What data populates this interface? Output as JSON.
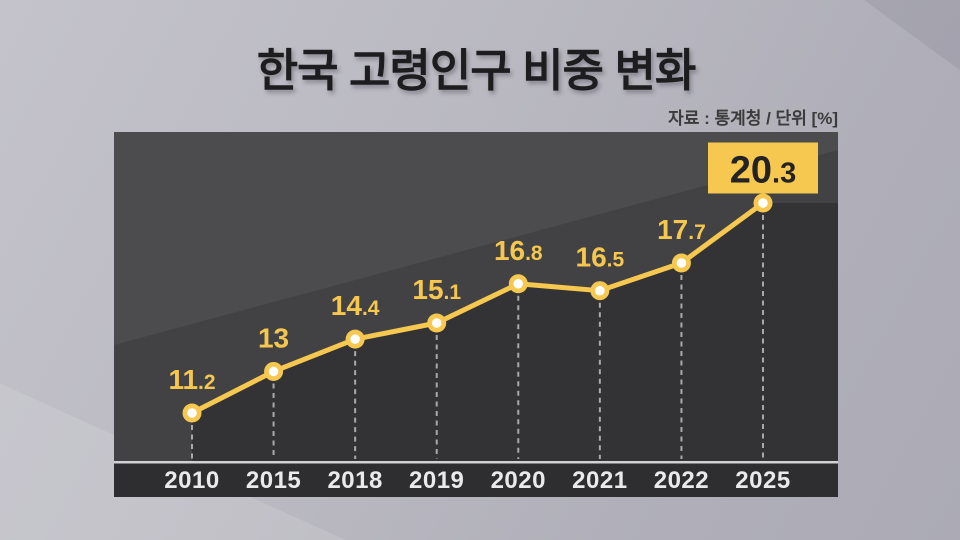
{
  "title": "한국 고령인구 비중 변화",
  "source_note": "자료 : 통계청 / 단위 [%]",
  "colors": {
    "accent_yellow": "#f7c84f",
    "label_yellow": "#f6c74e",
    "plot_base": "#424244",
    "plot_light_wedge": "#4c4c4e",
    "area_fill": "#333335",
    "year_band": "#2e2e30",
    "axis_line": "#d2d2d4",
    "dashed_line": "#a9a9ab",
    "year_text": "#eaeaec",
    "highlight_text": "#232325",
    "marker_core": "#ffffff"
  },
  "chart_data": {
    "type": "line",
    "title": "한국 고령인구 비중 변화",
    "source": "자료 : 통계청 / 단위 [%]",
    "unit": "%",
    "categories": [
      "2010",
      "2015",
      "2018",
      "2019",
      "2020",
      "2021",
      "2022",
      "2025"
    ],
    "values": [
      11.2,
      13,
      14.4,
      15.1,
      16.8,
      16.5,
      17.7,
      20.3
    ],
    "value_labels": [
      "11.2",
      "13",
      "14.4",
      "15.1",
      "16.8",
      "16.5",
      "17.7",
      "20.3"
    ],
    "highlight_index": 7,
    "highlight_label": "20.3",
    "ylim": [
      10,
      22
    ],
    "grid": "dashed-vertical-drop-lines",
    "legend": "none",
    "xlabel": "",
    "ylabel": ""
  }
}
